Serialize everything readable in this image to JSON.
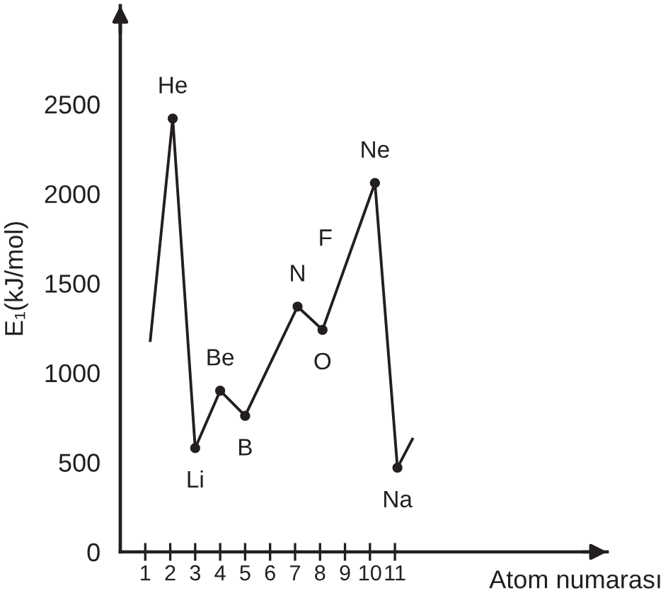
{
  "chart_data": {
    "type": "line",
    "xlabel": "Atom numarası",
    "ylabel": "E₁(kJ/mol)",
    "xlim": [
      0,
      19.5
    ],
    "ylim": [
      0,
      3050
    ],
    "xticks": [
      1,
      2,
      3,
      4,
      5,
      6,
      7,
      8,
      9,
      10,
      11
    ],
    "yticks": [
      0,
      500,
      1000,
      1500,
      2000,
      2500
    ],
    "series": [
      {
        "type": "line",
        "color": "#231f20",
        "marker": "none",
        "line_style": "solid",
        "x": [
          1.2,
          2.1,
          3,
          4,
          5,
          7.1,
          8.1,
          10.2,
          11.1,
          11.7
        ],
        "values": [
          1180,
          2420,
          580,
          900,
          760,
          1370,
          1240,
          2060,
          470,
          630
        ]
      },
      {
        "type": "scatter",
        "color": "#231f20",
        "marker": "circle",
        "x": [
          2.1,
          3,
          4,
          5,
          7.1,
          8.1,
          10.2,
          11.1
        ],
        "values": [
          2420,
          580,
          900,
          760,
          1370,
          1240,
          2060,
          470
        ]
      }
    ],
    "annotations": [
      {
        "text": "He",
        "x": 2.1,
        "y": 2420
      },
      {
        "text": "Li",
        "x": 3,
        "y": 580
      },
      {
        "text": "Be",
        "x": 4,
        "y": 900
      },
      {
        "text": "B",
        "x": 5,
        "y": 760
      },
      {
        "text": "N",
        "x": 7.1,
        "y": 1370
      },
      {
        "text": "O",
        "x": 8.1,
        "y": 1240
      },
      {
        "text": "F",
        "x": 9,
        "y": 1590
      },
      {
        "text": "Ne",
        "x": 10.2,
        "y": 2060
      },
      {
        "text": "Na",
        "x": 11.1,
        "y": 470
      }
    ]
  }
}
